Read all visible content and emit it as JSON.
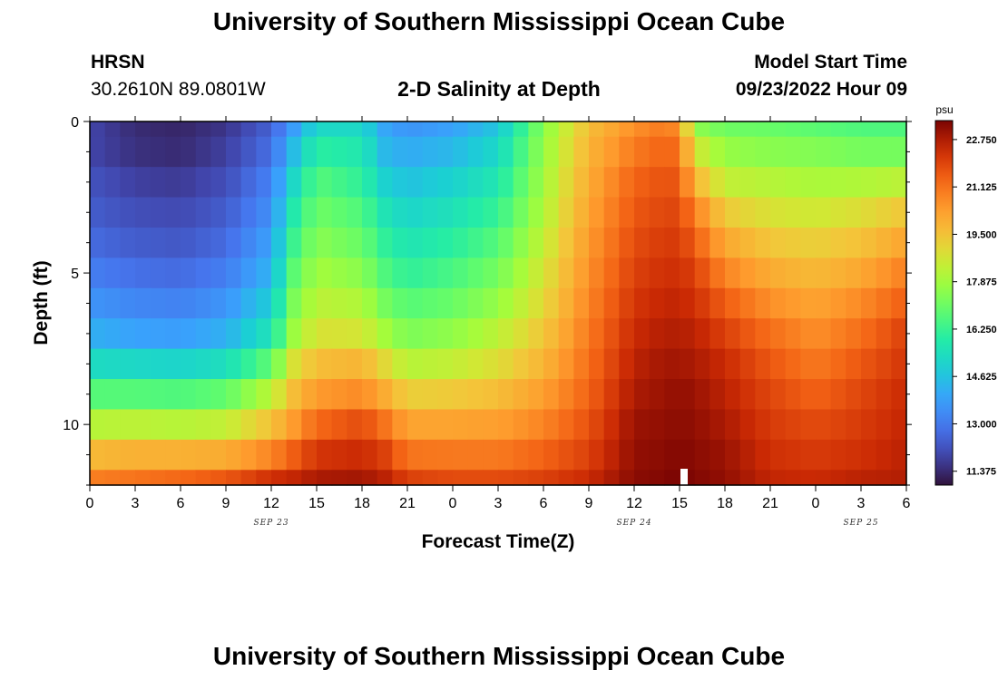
{
  "header": {
    "title": "University of Southern Mississippi Ocean Cube",
    "station": "HRSN",
    "coords": "30.2610N  89.0801W",
    "subtitle": "2-D Salinity at Depth",
    "start_label": "Model Start Time",
    "start_value": "09/23/2022 Hour 09"
  },
  "footer": {
    "title": "University of Southern Mississippi Ocean Cube"
  },
  "chart_data": {
    "type": "heatmap",
    "title": "2-D Salinity at Depth",
    "xlabel": "Forecast Time(Z)",
    "ylabel": "Depth (ft)",
    "x_ticks": [
      "0",
      "3",
      "6",
      "9",
      "12",
      "15",
      "18",
      "21",
      "0",
      "3",
      "6",
      "9",
      "12",
      "15",
      "18",
      "21",
      "0",
      "3",
      "6"
    ],
    "y_ticks": [
      "0",
      "5",
      "10"
    ],
    "day_labels": [
      {
        "label": "SEP 23",
        "at_hour": 12
      },
      {
        "label": "SEP 24",
        "at_hour": 36
      },
      {
        "label": "SEP 25",
        "at_hour": 51
      }
    ],
    "x_range_hours": [
      0,
      54
    ],
    "y_range_ft": [
      0,
      12
    ],
    "colorbar": {
      "unit": "psu",
      "ticks": [
        "22.750",
        "21.125",
        "19.500",
        "17.875",
        "16.250",
        "14.625",
        "13.000",
        "11.375"
      ],
      "range": [
        10.9,
        23.4
      ]
    },
    "surface_marker_hour": 39.3,
    "layer_tops_ft": [
      0,
      0.5,
      1.5,
      2.5,
      3.5,
      4.5,
      5.5,
      6.5,
      7.5,
      8.5,
      9.5,
      10.5,
      11.5
    ],
    "profile_hours": [
      0,
      3,
      6,
      9,
      12,
      13.5,
      15,
      18,
      19.5,
      21,
      24,
      27,
      30,
      33,
      36,
      38,
      39,
      40,
      42,
      45,
      48,
      51,
      54
    ],
    "profiles": [
      [
        11.9,
        11.9,
        12.2,
        12.4,
        12.7,
        13.1,
        13.6,
        14.2,
        15.3,
        16.7,
        18.2,
        19.7,
        20.9
      ],
      [
        11.4,
        11.5,
        11.8,
        12.1,
        12.4,
        12.8,
        13.3,
        13.9,
        15.2,
        16.7,
        18.3,
        19.9,
        21.1
      ],
      [
        11.3,
        11.4,
        11.7,
        12.0,
        12.3,
        12.7,
        13.2,
        13.8,
        15.1,
        16.6,
        18.2,
        19.9,
        21.3
      ],
      [
        11.6,
        11.8,
        12.1,
        12.4,
        12.7,
        13.1,
        13.6,
        14.2,
        15.4,
        16.9,
        18.4,
        20.0,
        21.6
      ],
      [
        12.5,
        12.8,
        13.2,
        13.5,
        13.9,
        14.3,
        14.9,
        15.6,
        16.9,
        18.3,
        19.5,
        20.8,
        22.3
      ],
      [
        13.8,
        14.5,
        15.2,
        15.8,
        16.3,
        16.8,
        17.3,
        17.8,
        18.8,
        19.6,
        20.4,
        21.5,
        22.5
      ],
      [
        15.2,
        16.0,
        16.7,
        17.1,
        17.5,
        17.9,
        18.3,
        18.8,
        19.6,
        20.4,
        21.3,
        22.2,
        22.8
      ],
      [
        15.2,
        15.7,
        16.1,
        16.6,
        17.0,
        17.5,
        18.1,
        18.7,
        19.8,
        20.7,
        21.8,
        22.4,
        22.9
      ],
      [
        14.0,
        14.4,
        15.0,
        15.6,
        16.1,
        16.6,
        17.2,
        17.9,
        19.0,
        20.0,
        21.1,
        22.0,
        22.6
      ],
      [
        13.6,
        14.1,
        14.6,
        15.1,
        15.6,
        16.1,
        16.7,
        17.3,
        18.2,
        19.2,
        20.2,
        21.1,
        22.0
      ],
      [
        13.9,
        14.4,
        15.0,
        15.5,
        16.0,
        16.5,
        17.0,
        17.6,
        18.4,
        19.3,
        20.2,
        21.0,
        21.8
      ],
      [
        14.7,
        15.2,
        15.7,
        16.2,
        16.7,
        17.2,
        17.7,
        18.3,
        18.9,
        19.6,
        20.3,
        21.0,
        21.8
      ],
      [
        17.5,
        17.7,
        17.9,
        18.1,
        18.4,
        18.7,
        19.0,
        19.4,
        19.8,
        20.3,
        20.8,
        21.4,
        22.0
      ],
      [
        19.6,
        19.8,
        20.0,
        20.2,
        20.4,
        20.6,
        20.8,
        21.0,
        21.2,
        21.4,
        21.7,
        22.0,
        22.4
      ],
      [
        20.6,
        21.0,
        21.4,
        21.6,
        21.8,
        22.0,
        22.2,
        22.4,
        22.6,
        22.8,
        23.0,
        23.1,
        23.2
      ],
      [
        21.0,
        21.4,
        21.7,
        21.9,
        22.1,
        22.3,
        22.5,
        22.7,
        22.9,
        23.0,
        23.1,
        23.2,
        23.3
      ],
      [
        20.6,
        21.2,
        21.6,
        21.9,
        22.1,
        22.3,
        22.5,
        22.7,
        22.9,
        23.1,
        23.2,
        23.3,
        23.4
      ],
      [
        17.6,
        18.7,
        19.8,
        20.9,
        21.5,
        22.0,
        22.3,
        22.6,
        22.8,
        23.0,
        23.1,
        23.2,
        23.3
      ],
      [
        17.1,
        17.7,
        18.4,
        19.3,
        20.1,
        20.8,
        21.5,
        22.0,
        22.4,
        22.6,
        22.8,
        23.0,
        23.1
      ],
      [
        17.0,
        17.5,
        18.2,
        18.8,
        19.4,
        20.0,
        20.6,
        21.2,
        21.6,
        21.9,
        22.1,
        22.3,
        22.5
      ],
      [
        16.8,
        17.4,
        18.0,
        18.6,
        19.2,
        19.7,
        20.2,
        20.6,
        21.0,
        21.4,
        21.8,
        22.1,
        22.4
      ],
      [
        16.6,
        17.2,
        18.1,
        18.9,
        19.5,
        20.1,
        20.7,
        21.2,
        21.6,
        21.9,
        22.1,
        22.3,
        22.6
      ],
      [
        16.6,
        17.2,
        18.3,
        19.4,
        20.2,
        20.9,
        21.5,
        22.0,
        22.2,
        22.4,
        22.5,
        22.6,
        22.7
      ]
    ]
  }
}
